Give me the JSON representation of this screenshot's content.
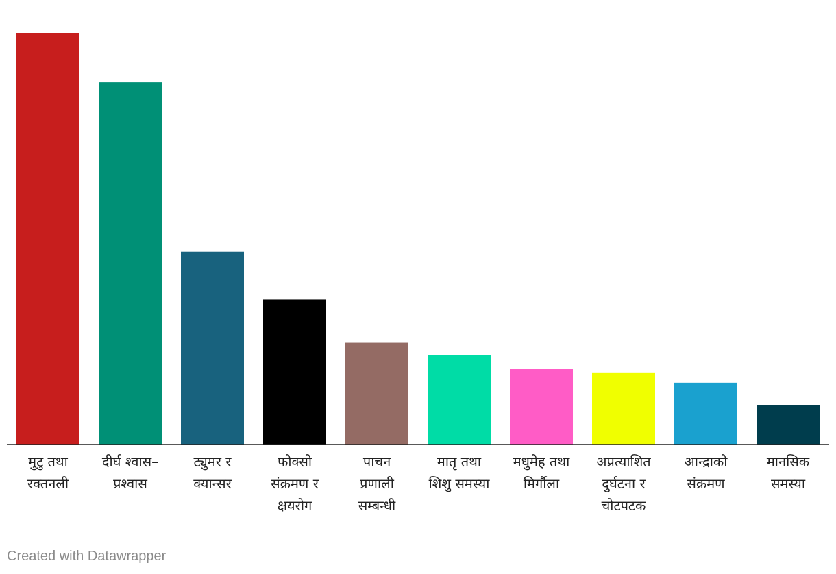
{
  "chart_data": {
    "type": "bar",
    "title": "",
    "xlabel": "",
    "ylabel": "",
    "ylim": [
      0,
      100
    ],
    "categories": [
      [
        "मुटु तथा",
        "रक्तनली"
      ],
      [
        "दीर्घ श्वास–",
        "प्रश्वास"
      ],
      [
        "ट्युमर र",
        "क्यान्सर"
      ],
      [
        "फोक्सो",
        "संक्रमण र",
        "क्षयरोग"
      ],
      [
        "पाचन",
        "प्रणाली",
        "सम्बन्धी"
      ],
      [
        "मातृ तथा",
        "शिशु समस्या"
      ],
      [
        "मधुमेह तथा",
        "मिर्गौला"
      ],
      [
        "अप्रत्याशित",
        "दुर्घटना र",
        "चोटपटक"
      ],
      [
        "आन्द्राको",
        "संक्रमण"
      ],
      [
        "मानसिक",
        "समस्या"
      ]
    ],
    "values": [
      100,
      88,
      46.8,
      35.2,
      24.7,
      21.7,
      18.4,
      17.5,
      15,
      9.6
    ],
    "colors": [
      "#c71e1d",
      "#009076",
      "#18627e",
      "#000000",
      "#946b64",
      "#00dca6",
      "#ff5cc6",
      "#f0ff00",
      "#1aa1cf",
      "#003d4d"
    ],
    "grid": false,
    "legend": "none"
  },
  "footer": {
    "credit": "Created with Datawrapper"
  }
}
